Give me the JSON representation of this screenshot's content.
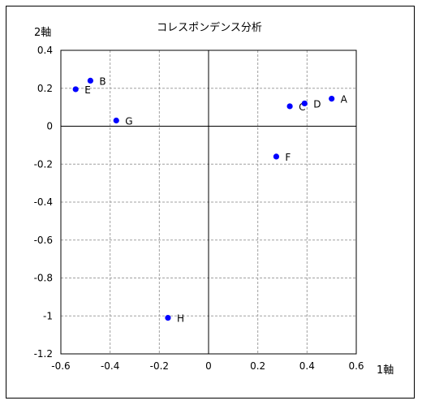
{
  "chart_data": {
    "type": "scatter",
    "title": "コレスポンデンス分析",
    "xlabel": "1軸",
    "ylabel": "2軸",
    "xlim": [
      -0.6,
      0.6
    ],
    "ylim": [
      -1.2,
      0.4
    ],
    "xticks": [
      -0.6,
      -0.4,
      -0.2,
      0,
      0.2,
      0.4,
      0.6
    ],
    "yticks": [
      0.4,
      0.2,
      0,
      -0.2,
      -0.4,
      -0.6,
      -0.8,
      -1,
      -1.2
    ],
    "xtick_labels": [
      "-0.6",
      "-0.4",
      "-0.2",
      "0",
      "0.2",
      "0.4",
      "0.6"
    ],
    "ytick_labels": [
      "0.4",
      "0.2",
      "0",
      "-0.2",
      "-0.4",
      "-0.6",
      "-0.8",
      "-1",
      "-1.2"
    ],
    "grid": true,
    "marker_color": "#0000ff",
    "points": [
      {
        "label": "A",
        "x": 0.5,
        "y": 0.145
      },
      {
        "label": "B",
        "x": -0.48,
        "y": 0.24
      },
      {
        "label": "C",
        "x": 0.33,
        "y": 0.105
      },
      {
        "label": "D",
        "x": 0.39,
        "y": 0.12
      },
      {
        "label": "E",
        "x": -0.54,
        "y": 0.195
      },
      {
        "label": "F",
        "x": 0.275,
        "y": -0.16
      },
      {
        "label": "G",
        "x": -0.375,
        "y": 0.03
      },
      {
        "label": "H",
        "x": -0.165,
        "y": -1.01
      }
    ]
  }
}
